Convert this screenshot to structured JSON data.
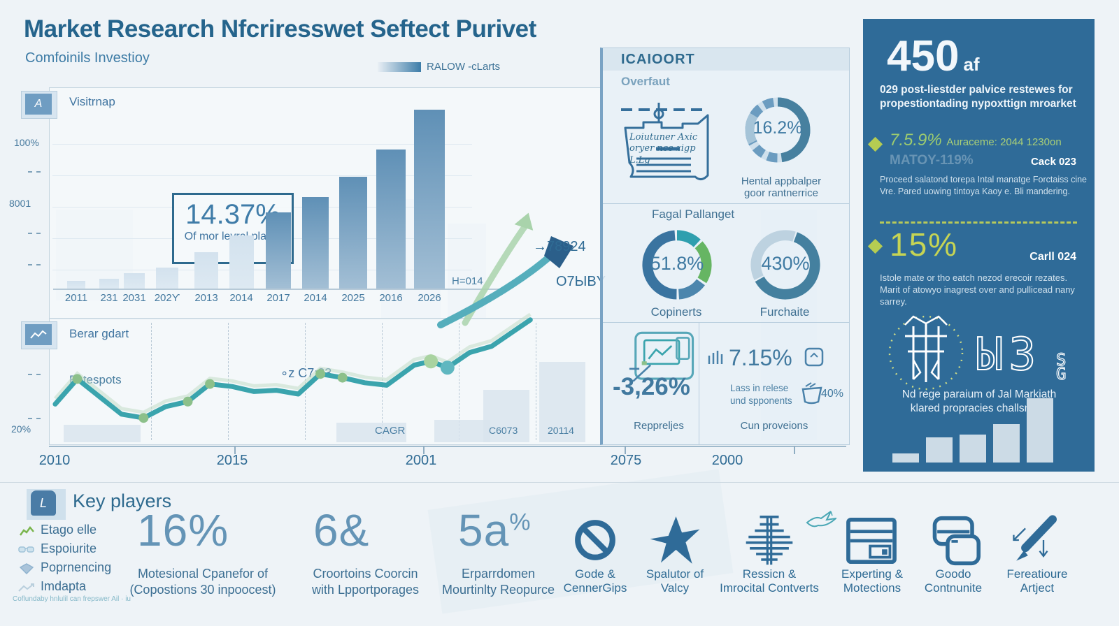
{
  "header": {
    "title": "Market Research Nfcriresswet Seftect Purivet",
    "subtitle": "Comfoinils Investioy",
    "legend_label": "RALOW -cLarts"
  },
  "colors": {
    "accent_blue": "#2f6b98",
    "steel": "#4a82aa",
    "teal_line": "#3aa4ad",
    "green_dot": "#8cc08a",
    "accent_yellow_green": "#c6d454",
    "pale_bar": "#d6e4ee"
  },
  "bar_panel": {
    "tab": "A",
    "label": "Visitrnap",
    "callout_value": "14.37%",
    "callout_caption": "Of mor levral plarks",
    "y_tick_top": "100%",
    "y_tick_mid": "8001",
    "h_label": "H=014"
  },
  "line_panel": {
    "tab_icon": "line-chart",
    "label": "Berar gdart",
    "series_label": "Fotespots",
    "annotation": "∘z C7:83→",
    "cagr_label": "CAGR",
    "tag1": "C6073",
    "tag2": "20114",
    "y_tick": "20%",
    "arrow_label_top": "→78924",
    "arrow_label_bottom": "О7ЫВY"
  },
  "timeline": [
    "2010",
    "2015",
    "2001",
    "2075",
    "2000"
  ],
  "report_panel": {
    "header": "ICAIOORT",
    "subtitle": "Overfaut",
    "note_line1": "Loiutuner Axic",
    "note_line2": "oryer nce zigp",
    "note_line3": "L.Lg",
    "donut_overview": {
      "value": "16.2%",
      "caption": "Hental appbalper\ngoor rantnerrice"
    },
    "section_title": "Fagal Pallanget",
    "donut_left": {
      "value": "51.8%",
      "caption": "Copinerts"
    },
    "donut_right": {
      "value": "430%",
      "caption": "Furchaite"
    },
    "cell_left": {
      "value": "-3,26%",
      "caption": "Reppreljes"
    },
    "cell_right": {
      "value": "7.15%",
      "note": "Lass in relese\nund spponents",
      "badge": "40%",
      "caption": "Cun proveions"
    }
  },
  "sidebar": {
    "headline_value": "450",
    "headline_unit": "af",
    "headline_text": "029 post-liestder palvice restewes for propestiontading nypoxttign mroarket",
    "stat1": {
      "value": "7.5.9%",
      "inline": "Auraceme: 2044 1230on",
      "ghost": "MATOY-119%",
      "tag": "Cack 023",
      "body": "Proceed salatond torepa Intal manatge Forctaiss cine Vre. Pared uowing tintoya Kaoy e. Bli mandering."
    },
    "stat2": {
      "value": "15%",
      "tag": "Carll 024",
      "body": "Istole mate or tho eatch nezod erecoir rezates. Marit of atowyo inagrest over and pullicead nany sarrey."
    },
    "footer_text": "Nd rege paraium of Jal Markiath\nklared propracies challsnges"
  },
  "bottom": {
    "key_players_title": "Key players",
    "key_players_tab": "L",
    "players": [
      "Etago elle",
      "Espoiurite",
      "Poprnencing",
      "Imdapta"
    ],
    "footnote": "Coflundaby hnlulil can frepswer Ail · iu",
    "stats": [
      {
        "value": "16%",
        "suffix": "",
        "label": "Motesional Cpanefor of\n(Copostions 30 inpoocest)"
      },
      {
        "value": "6&",
        "suffix": "",
        "label": "Croortoins Coorcin\nwith Lpportporages"
      },
      {
        "value": "5a",
        "suffix": "%",
        "label": "Erparrdomen\nMourtinlty Reopurce"
      }
    ],
    "icons": [
      {
        "icon": "no-sign",
        "label": "Gode &\nCennerGips"
      },
      {
        "icon": "star-burst",
        "label": "Spalutor of\nValcy"
      },
      {
        "icon": "cross-hatch",
        "label": "Ressicn &\nImrocital Contverts"
      },
      {
        "icon": "server",
        "label": "Experting &\nMotections"
      },
      {
        "icon": "cards",
        "label": "Goodo\nContnunite"
      },
      {
        "icon": "pen",
        "label": "Fereatioure\nArtject"
      }
    ]
  },
  "chart_data": [
    {
      "type": "bar",
      "title": "Visitrnap",
      "categories": [
        "2011",
        "231",
        "2031",
        "202ϒ",
        "2013",
        "2014",
        "2017",
        "2014",
        "2025",
        "2016",
        "2026"
      ],
      "values": [
        4,
        5,
        8,
        11,
        19,
        28,
        40,
        48,
        59,
        73,
        94
      ],
      "ylabel": "%",
      "ylim": [
        0,
        100
      ],
      "annotation": "14.37% Of mor levral plarks",
      "right_label": "H=014"
    },
    {
      "type": "line",
      "title": "Berar gdart",
      "series_name": "Fotespots",
      "x_axis": [
        "2010",
        "2015",
        "2001",
        "2075",
        "2000"
      ],
      "points": [
        [
          1,
          68,
          0
        ],
        [
          5,
          48,
          1
        ],
        [
          9,
          62,
          0
        ],
        [
          13,
          76,
          0
        ],
        [
          17,
          79,
          1
        ],
        [
          21,
          70,
          0
        ],
        [
          25,
          66,
          1
        ],
        [
          29,
          52,
          1
        ],
        [
          33,
          54,
          0
        ],
        [
          37,
          58,
          0
        ],
        [
          41,
          57,
          0
        ],
        [
          45,
          60,
          0
        ],
        [
          49,
          44,
          1
        ],
        [
          53,
          47,
          1
        ],
        [
          57,
          51,
          0
        ],
        [
          61,
          53,
          0
        ],
        [
          66,
          37,
          0
        ],
        [
          69,
          34,
          2
        ],
        [
          72,
          39,
          3
        ],
        [
          76,
          27,
          0
        ],
        [
          80,
          22,
          0
        ],
        [
          84,
          10,
          0
        ],
        [
          87,
          1,
          0
        ]
      ],
      "annotations": [
        "∘z C7:83→",
        "CAGR",
        "C6073",
        "20114",
        "→78924",
        "О7ЫВY",
        "20%"
      ]
    },
    {
      "type": "donut",
      "value": 16.2,
      "label": "Hental appbalper goor rantnerrice",
      "segments": [
        {
          "name": "filled",
          "pct": 48
        },
        {
          "name": "light",
          "pct": 16
        },
        {
          "name": "dashed",
          "pct": 36
        }
      ]
    },
    {
      "type": "donut",
      "value": 51.8,
      "label": "Copinerts",
      "segments": [
        {
          "color": "#2f9fae",
          "pct": 13
        },
        {
          "color": "#66b563",
          "pct": 22
        },
        {
          "color": "#4c86ad",
          "pct": 15
        },
        {
          "color": "#3a74a0",
          "pct": 50
        }
      ]
    },
    {
      "type": "donut",
      "value": 430,
      "label": "Furchaite",
      "segments": [
        {
          "color": "#44809f",
          "pct": 62
        },
        {
          "color": "#bdd2e0",
          "pct": 36
        }
      ]
    },
    {
      "type": "bar",
      "title": "sidebar-mini-bars",
      "values": [
        14,
        39,
        43,
        60,
        100
      ]
    }
  ]
}
